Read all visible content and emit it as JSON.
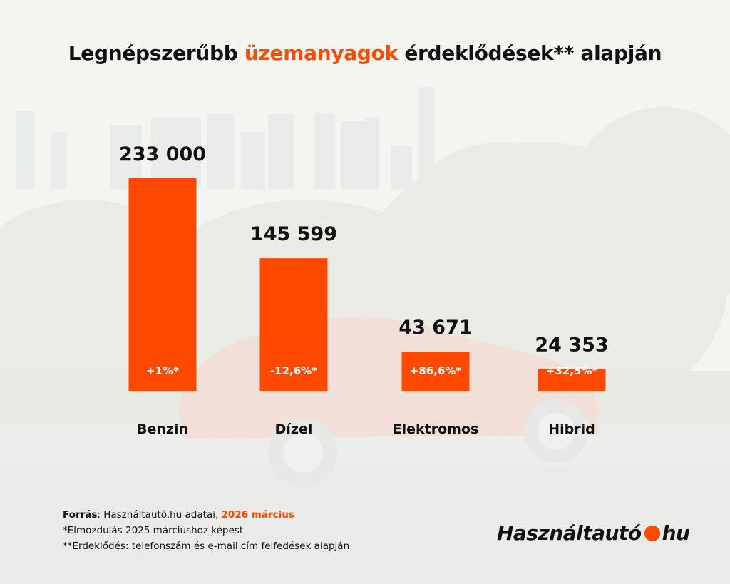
{
  "title": {
    "before": "Legnépszerűbb ",
    "highlight": "üzemanyagok",
    "after": " érdeklődések** alapján"
  },
  "chart_data": {
    "type": "bar",
    "categories": [
      "Benzin",
      "Dízel",
      "Elektromos",
      "Hibrid"
    ],
    "values": [
      233000,
      145599,
      43671,
      24353
    ],
    "value_labels": [
      "233 000",
      "145 599",
      "43 671",
      "24 353"
    ],
    "change_labels": [
      "+1%*",
      "-12,6%*",
      "+86,6%*",
      "+32,5%*"
    ],
    "title": "Legnépszerűbb üzemanyagok érdeklődések** alapján",
    "xlabel": "",
    "ylabel": "",
    "grid": false,
    "bar_color": "#ff4800"
  },
  "footer": {
    "source_label": "Forrás",
    "source_text": ": Használtautó.hu adatai, ",
    "source_date": "2026 március",
    "note1": "*Elmozdulás 2025 márciushoz képest",
    "note2": "**Érdeklődés: telefonszám és e-mail cím felfedések alapján"
  },
  "logo": {
    "left": "Használtautó",
    "right": "hu"
  },
  "colors": {
    "accent": "#ff4800",
    "text": "#111111"
  }
}
